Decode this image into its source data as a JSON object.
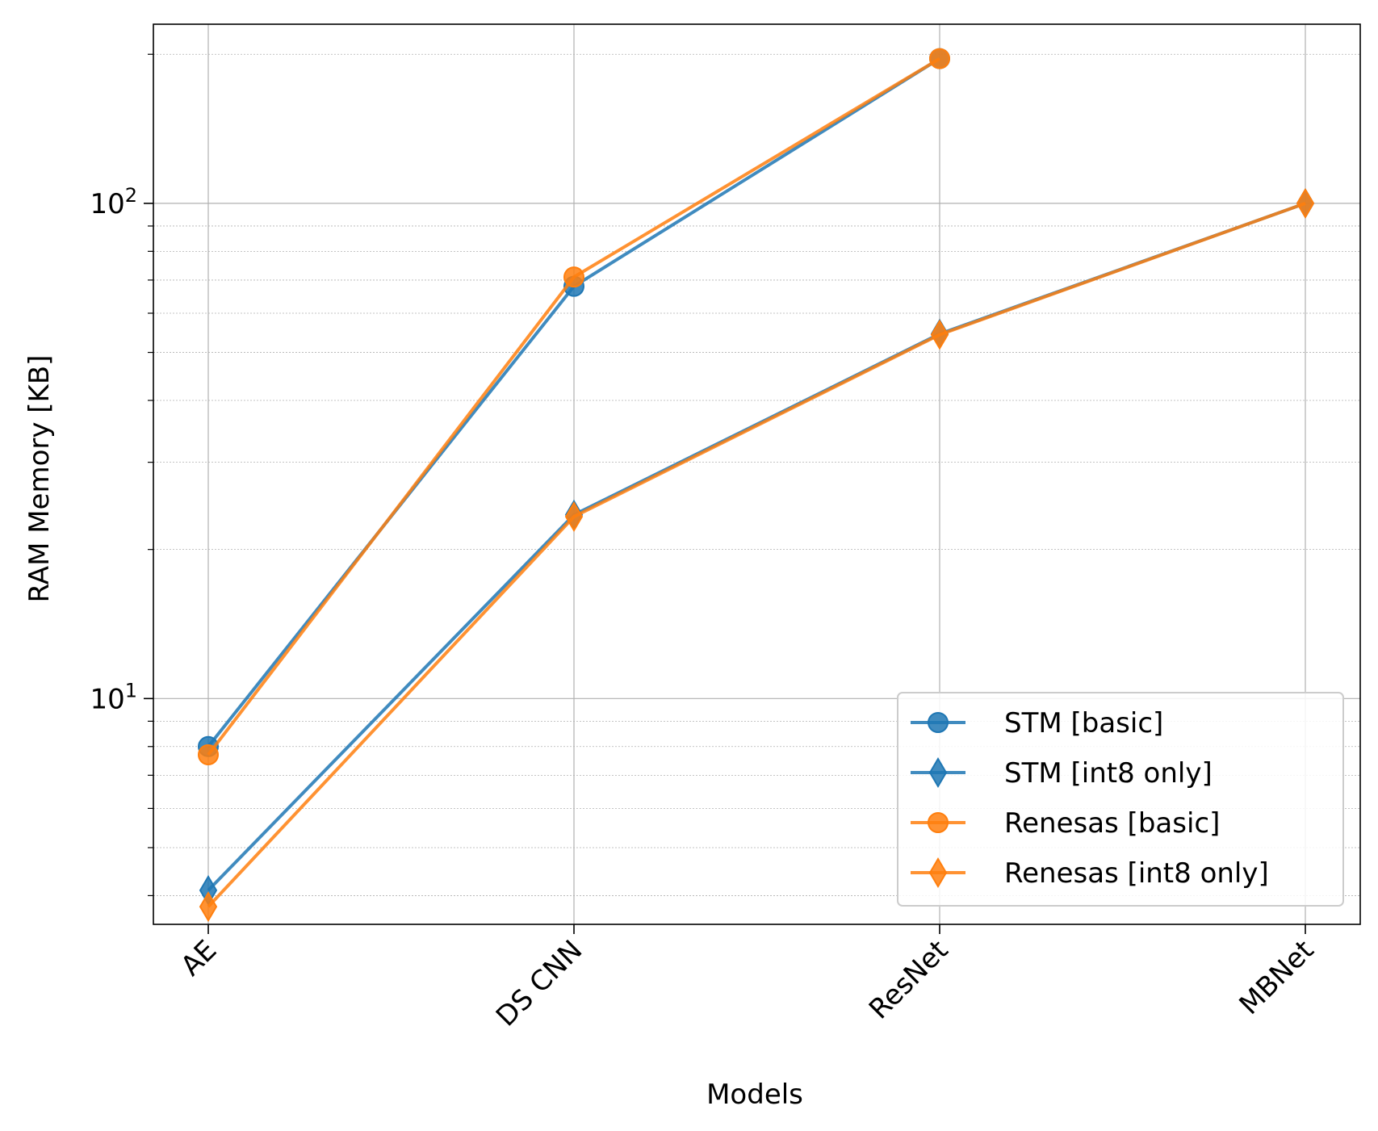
{
  "chart_data": {
    "type": "line",
    "categories": [
      "AE",
      "DS CNN",
      "ResNet",
      "MBNet"
    ],
    "xlabel": "Models",
    "ylabel": "RAM Memory [KB]",
    "yscale": "log",
    "ylim": [
      3.5,
      230
    ],
    "y_tick_labels": [
      {
        "base": "10",
        "exp": "1",
        "value": 10
      },
      {
        "base": "10",
        "exp": "2",
        "value": 100
      }
    ],
    "grid": true,
    "minor_grid": true,
    "legend_position": "lower-right",
    "series": [
      {
        "name": "STM [basic]",
        "marker": "circle",
        "color": "#1f77b4",
        "values": [
          8.0,
          68.0,
          196.0,
          null
        ]
      },
      {
        "name": "STM [int8 only]",
        "marker": "diamond",
        "color": "#1f77b4",
        "values": [
          4.1,
          23.5,
          54.5,
          100.0
        ]
      },
      {
        "name": "Renesas [basic]",
        "marker": "circle",
        "color": "#ff7f0e",
        "values": [
          7.7,
          71.0,
          196.0,
          null
        ]
      },
      {
        "name": "Renesas [int8 only]",
        "marker": "diamond",
        "color": "#ff7f0e",
        "values": [
          3.8,
          23.3,
          54.3,
          100.0
        ]
      }
    ]
  }
}
